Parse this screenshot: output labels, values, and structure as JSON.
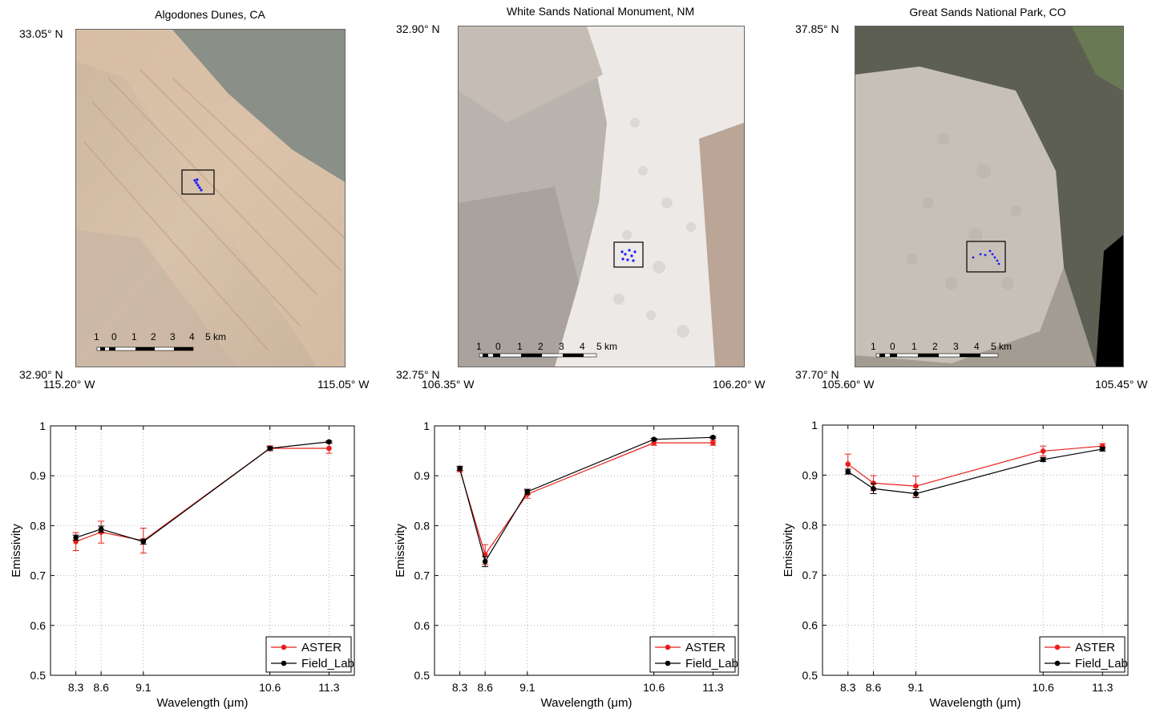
{
  "maps": [
    {
      "title": "Algodones Dunes, CA",
      "lat_top": "33.05° N",
      "lat_bottom": "32.90° N",
      "lon_left": "115.20° W",
      "lon_right": "115.05° W",
      "scalebar": [
        "1",
        "0",
        "1",
        "2",
        "3",
        "4",
        "5 km"
      ]
    },
    {
      "title": "White Sands National Monument, NM",
      "lat_top": "32.90° N",
      "lat_bottom": "32.75° N",
      "lon_left": "106.35° W",
      "lon_right": "106.20° W",
      "scalebar": [
        "1",
        "0",
        "1",
        "2",
        "3",
        "4",
        "5 km"
      ]
    },
    {
      "title": "Great Sands National Park, CO",
      "lat_top": "37.85° N",
      "lat_bottom": "37.70° N",
      "lon_left": "105.60° W",
      "lon_right": "105.45° W",
      "scalebar": [
        "1",
        "0",
        "1",
        "2",
        "3",
        "4",
        "5 km"
      ]
    }
  ],
  "colors": {
    "aster": "#e8201c",
    "field_lab": "#000000",
    "sample_points": "#1a1aff"
  },
  "chart_data": [
    {
      "type": "line",
      "xlabel": "Wavelength (μm)",
      "ylabel": "Emissivity",
      "xlim": [
        8.0,
        11.6
      ],
      "ylim": [
        0.5,
        1.0
      ],
      "x": [
        8.3,
        8.6,
        9.1,
        10.6,
        11.3
      ],
      "x_tick_labels": [
        "8.3",
        "8.6",
        "9.1",
        "10.6",
        "11.3"
      ],
      "y_ticks": [
        "0.5",
        "0.6",
        "0.7",
        "0.8",
        "0.9",
        "1"
      ],
      "grid": true,
      "legend_position": "bottom-right",
      "series": [
        {
          "name": "ASTER",
          "values": [
            0.768,
            0.787,
            0.77,
            0.955,
            0.955
          ],
          "errors": [
            0.018,
            0.022,
            0.025,
            0.005,
            0.01
          ]
        },
        {
          "name": "Field_Lab",
          "values": [
            0.776,
            0.793,
            0.768,
            0.955,
            0.968
          ],
          "errors": [
            0.005,
            0.006,
            0.005,
            0.003,
            0.002
          ]
        }
      ]
    },
    {
      "type": "line",
      "xlabel": "Wavelength (μm)",
      "ylabel": "Emissivity",
      "xlim": [
        8.0,
        11.6
      ],
      "ylim": [
        0.5,
        1.0
      ],
      "x": [
        8.3,
        8.6,
        9.1,
        10.6,
        11.3
      ],
      "x_tick_labels": [
        "8.3",
        "8.6",
        "9.1",
        "10.6",
        "11.3"
      ],
      "y_ticks": [
        "0.5",
        "0.6",
        "0.7",
        "0.8",
        "0.9",
        "1"
      ],
      "grid": true,
      "legend_position": "bottom-right",
      "series": [
        {
          "name": "ASTER",
          "values": [
            0.912,
            0.742,
            0.863,
            0.966,
            0.966
          ],
          "errors": [
            0.004,
            0.02,
            0.008,
            0.005,
            0.005
          ]
        },
        {
          "name": "Field_Lab",
          "values": [
            0.915,
            0.728,
            0.868,
            0.973,
            0.977
          ],
          "errors": [
            0.004,
            0.01,
            0.005,
            0.002,
            0.002
          ]
        }
      ]
    },
    {
      "type": "line",
      "xlabel": "Wavelength (μm)",
      "ylabel": "Emissivity",
      "xlim": [
        8.0,
        11.6
      ],
      "ylim": [
        0.5,
        1.0
      ],
      "x": [
        8.3,
        8.6,
        9.1,
        10.6,
        11.3
      ],
      "x_tick_labels": [
        "8.3",
        "8.6",
        "9.1",
        "10.6",
        "11.3"
      ],
      "y_ticks": [
        "0.5",
        "0.6",
        "0.7",
        "0.8",
        "0.9",
        "1"
      ],
      "grid": true,
      "legend_position": "bottom-right",
      "series": [
        {
          "name": "ASTER",
          "values": [
            0.922,
            0.884,
            0.878,
            0.948,
            0.958
          ],
          "errors": [
            0.02,
            0.015,
            0.02,
            0.01,
            0.005
          ]
        },
        {
          "name": "Field_Lab",
          "values": [
            0.907,
            0.873,
            0.863,
            0.931,
            0.952
          ],
          "errors": [
            0.005,
            0.01,
            0.008,
            0.004,
            0.004
          ]
        }
      ]
    }
  ]
}
